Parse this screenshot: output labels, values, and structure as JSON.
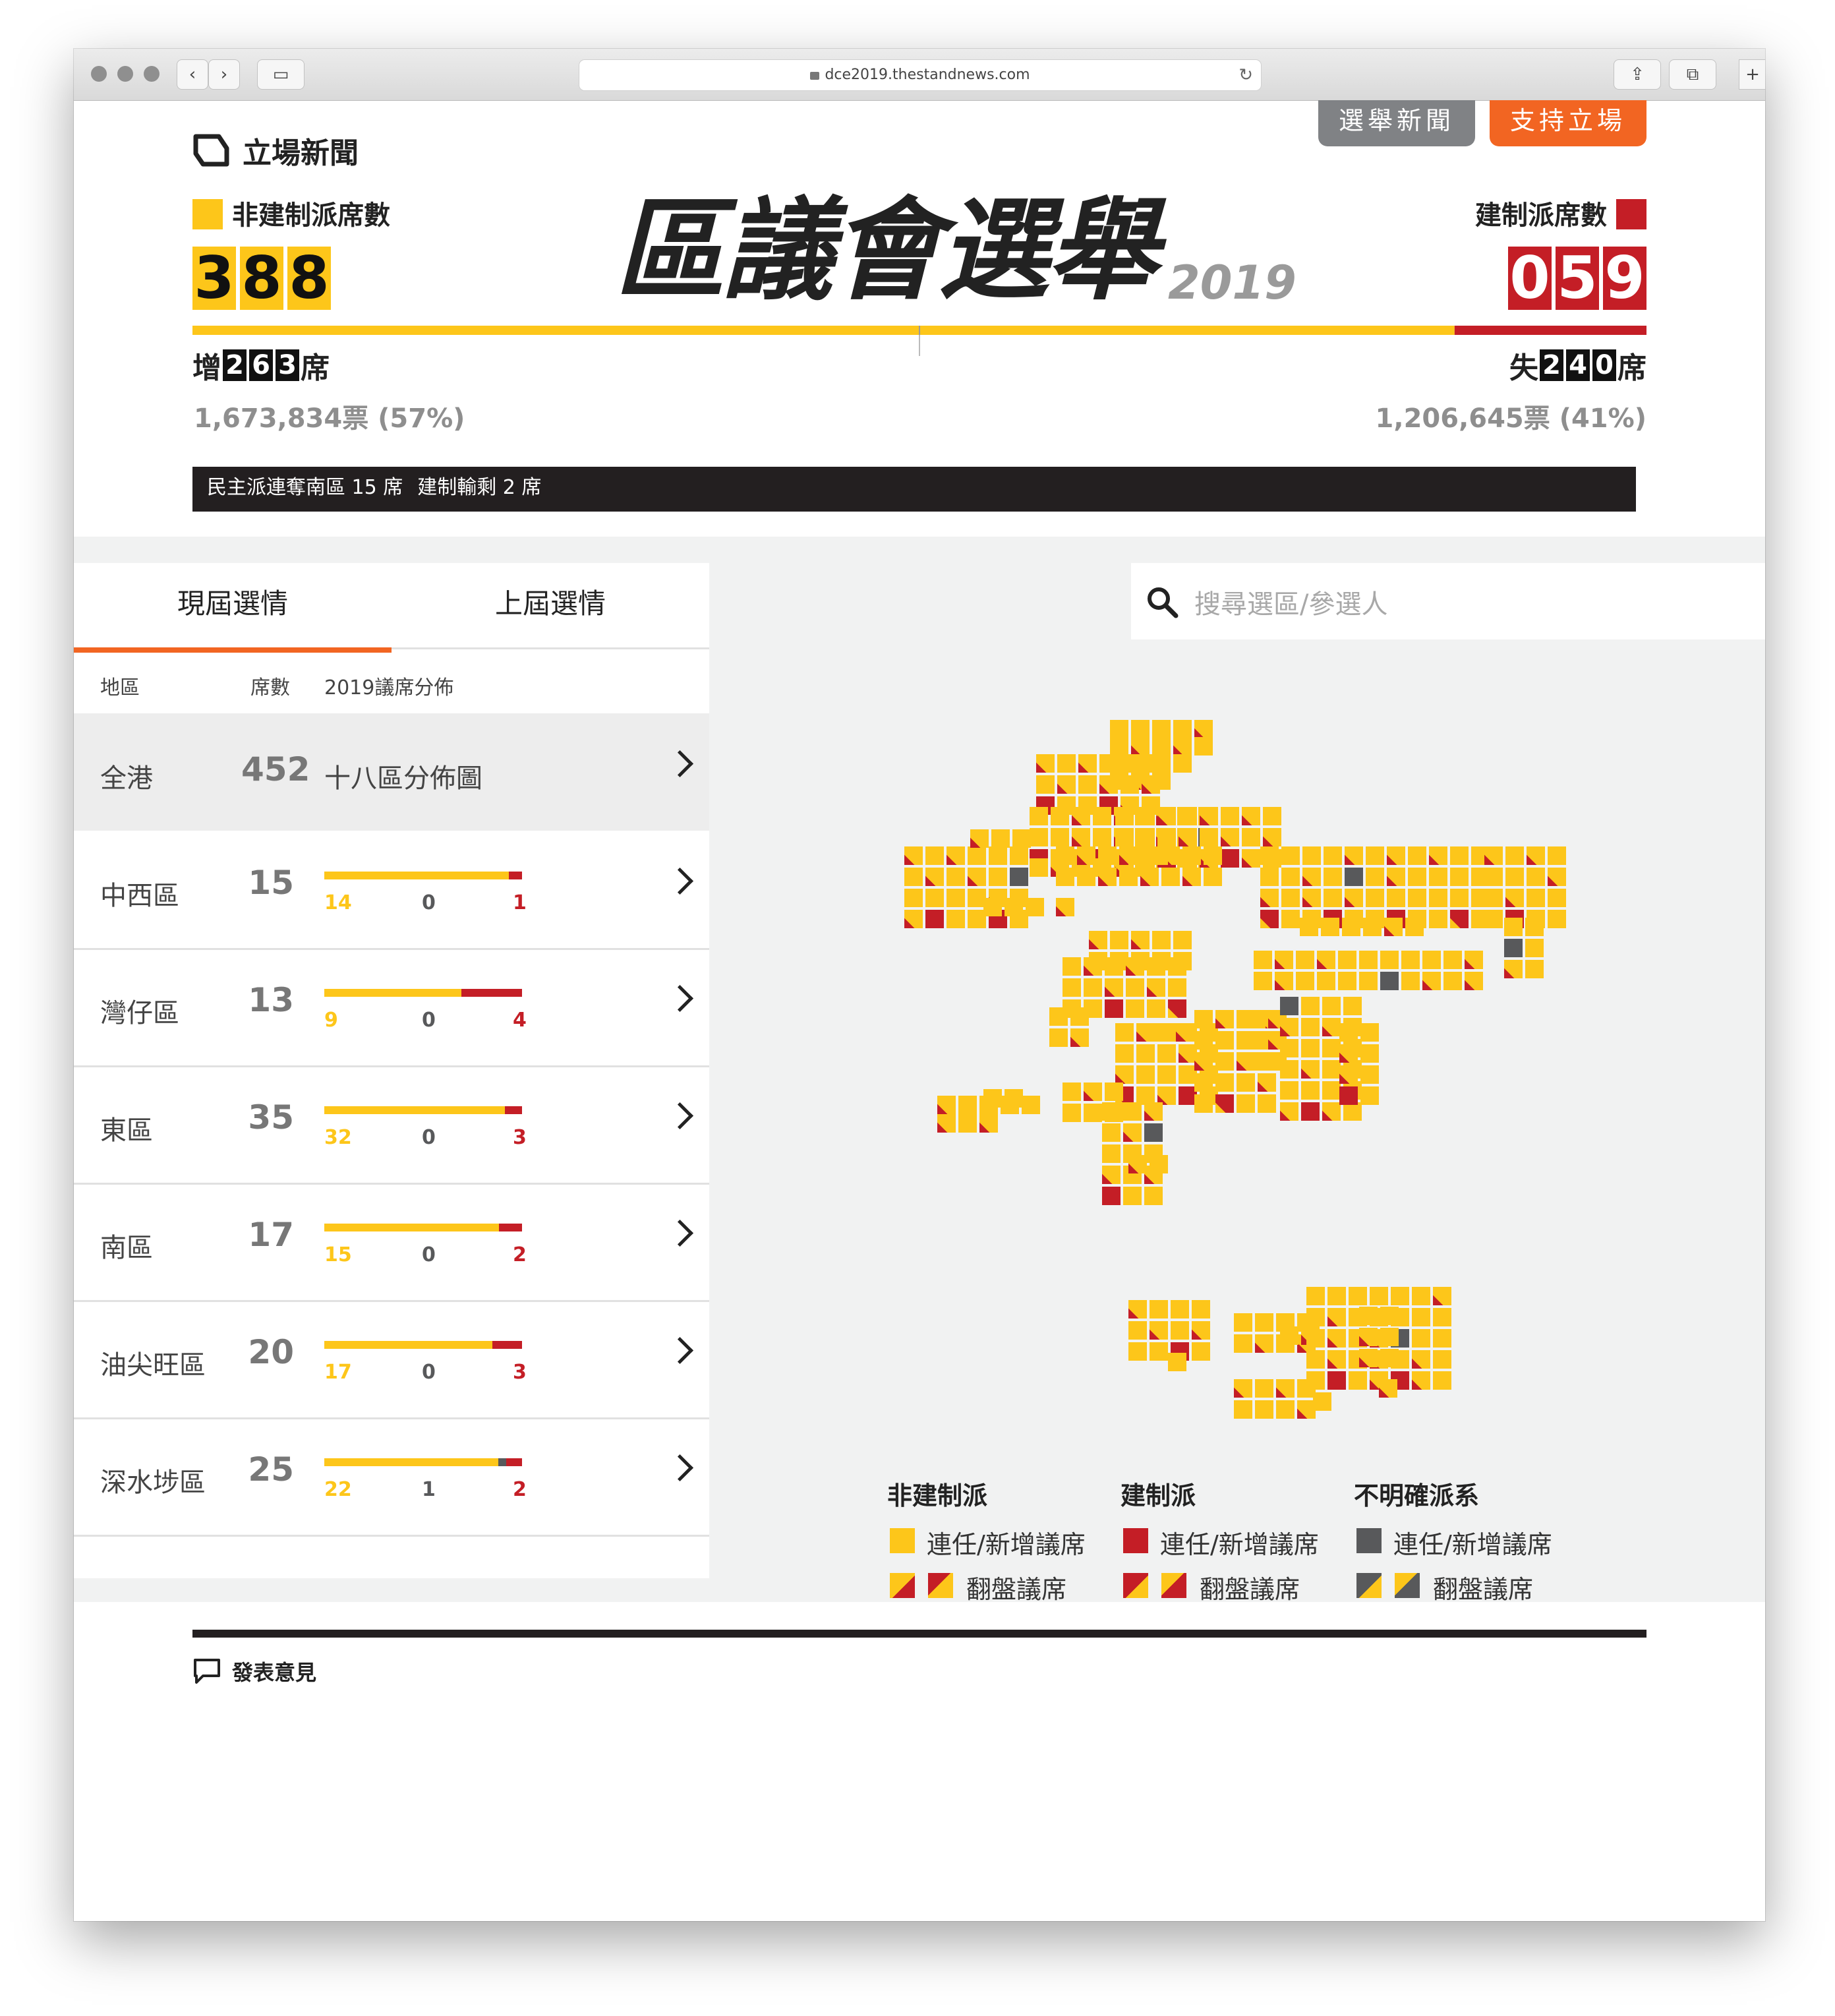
{
  "browser": {
    "url": "dce2019.thestandnews.com"
  },
  "header": {
    "logo_text": "立場新聞",
    "nav_news": "選舉新聞",
    "nav_support": "支持立場",
    "title": "區議會選舉",
    "year": "2019"
  },
  "left_camp": {
    "label": "非建制派席數",
    "seats_digits": [
      "3",
      "8",
      "8"
    ],
    "change_prefix": "增",
    "change_digits": [
      "2",
      "6",
      "3"
    ],
    "change_suffix": "席",
    "votes": "1,673,834票 (57%)",
    "color": "#fdc61a"
  },
  "right_camp": {
    "label": "建制派席數",
    "seats_digits": [
      "0",
      "5",
      "9"
    ],
    "change_prefix": "失",
    "change_digits": [
      "2",
      "4",
      "0"
    ],
    "change_suffix": "席",
    "votes": "1,206,645票 (41%)",
    "color": "#c41e26"
  },
  "seat_share": {
    "pro_democracy": 388,
    "pro_establishment": 59,
    "total": 452
  },
  "ticker": [
    "民主派連奪南區 15 席",
    "建制輸剩 2 席"
  ],
  "tabs": {
    "current": "現屆選情",
    "previous": "上屆選情"
  },
  "search": {
    "placeholder": "搜尋選區/參選人"
  },
  "table": {
    "headers": {
      "district": "地區",
      "seats": "席數",
      "distribution": "2019議席分佈"
    },
    "all": {
      "name": "全港",
      "seats": "452",
      "link": "十八區分佈圖"
    },
    "rows": [
      {
        "name": "中西區",
        "seats": "15",
        "dem": 14,
        "unk": 0,
        "est": 1
      },
      {
        "name": "灣仔區",
        "seats": "13",
        "dem": 9,
        "unk": 0,
        "est": 4
      },
      {
        "name": "東區",
        "seats": "35",
        "dem": 32,
        "unk": 0,
        "est": 3
      },
      {
        "name": "南區",
        "seats": "17",
        "dem": 15,
        "unk": 0,
        "est": 2
      },
      {
        "name": "油尖旺區",
        "seats": "20",
        "dem": 17,
        "unk": 0,
        "est": 3
      },
      {
        "name": "深水埗區",
        "seats": "25",
        "dem": 22,
        "unk": 1,
        "est": 2
      }
    ]
  },
  "legend": {
    "groups": [
      {
        "title": "非建制派",
        "held": "連任/新增議席",
        "flipped": "翻盤議席",
        "color": "#fdc61a"
      },
      {
        "title": "建制派",
        "held": "連任/新增議席",
        "flipped": "翻盤議席",
        "color": "#c41e26"
      },
      {
        "title": "不明確派系",
        "held": "連任/新增議席",
        "flipped": "翻盤議席",
        "color": "#58595b"
      }
    ]
  },
  "footer": {
    "comment": "發表意見"
  },
  "colors": {
    "yellow": "#fdc61a",
    "red": "#c41e26",
    "grey": "#58595b",
    "orange": "#f26522",
    "dark": "#231f20"
  }
}
